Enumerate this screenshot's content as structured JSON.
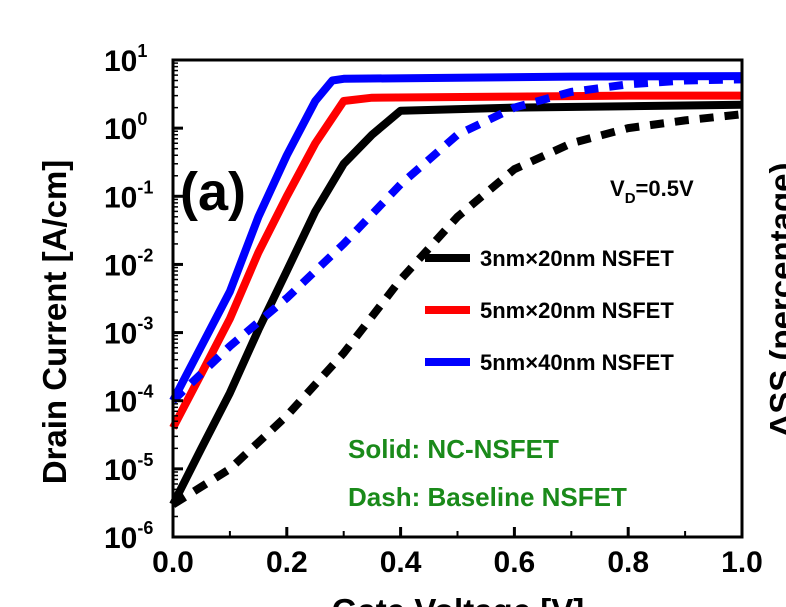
{
  "chart_data": {
    "type": "line",
    "panel_label": "(a)",
    "xlabel": "Gate Voltage [V]",
    "ylabel": "Drain Current [A/cm]",
    "right_axis_label_partial": "ΔSS (percentage)",
    "xlim": [
      0,
      1.0
    ],
    "ylim_log10": [
      -6,
      1
    ],
    "y_scale": "log",
    "x_ticks": [
      "0.0",
      "0.2",
      "0.4",
      "0.6",
      "0.8",
      "1.0"
    ],
    "y_ticks": [
      {
        "base": "10",
        "exp": "1"
      },
      {
        "base": "10",
        "exp": "0"
      },
      {
        "base": "10",
        "exp": "-1"
      },
      {
        "base": "10",
        "exp": "-2"
      },
      {
        "base": "10",
        "exp": "-3"
      },
      {
        "base": "10",
        "exp": "-4"
      },
      {
        "base": "10",
        "exp": "-5"
      },
      {
        "base": "10",
        "exp": "-6"
      }
    ],
    "annotation_vd": {
      "main": "V",
      "sub": "D",
      "rest": "=0.5V"
    },
    "legend": [
      {
        "label": "3nm×20nm NSFET",
        "color": "#000000"
      },
      {
        "label": "5nm×20nm NSFET",
        "color": "#ff0000"
      },
      {
        "label": "5nm×40nm NSFET",
        "color": "#0000ff"
      }
    ],
    "style_notes": {
      "solid": "Solid:  NC-NSFET",
      "dash": "Dash:  Baseline NSFET",
      "note_color": "#1a8a1a"
    },
    "series": [
      {
        "style": "solid",
        "color": "#0000ff",
        "x": [
          0,
          0.05,
          0.1,
          0.15,
          0.2,
          0.25,
          0.28,
          0.3,
          0.5,
          0.7,
          1.0
        ],
        "y": [
          0.0001,
          0.00063,
          0.004,
          0.05,
          0.4,
          2.5,
          5.0,
          5.3,
          5.5,
          5.7,
          5.8
        ]
      },
      {
        "style": "solid",
        "color": "#ff0000",
        "x": [
          0,
          0.05,
          0.1,
          0.15,
          0.2,
          0.25,
          0.3,
          0.35,
          0.6,
          0.8,
          1.0
        ],
        "y": [
          4e-05,
          0.00025,
          0.0016,
          0.015,
          0.1,
          0.6,
          2.5,
          2.8,
          2.9,
          3.0,
          3.0
        ]
      },
      {
        "style": "solid",
        "color": "#000000",
        "x": [
          0,
          0.05,
          0.1,
          0.15,
          0.2,
          0.25,
          0.3,
          0.35,
          0.4,
          0.6,
          0.8,
          1.0
        ],
        "y": [
          3e-06,
          2e-05,
          0.00013,
          0.0011,
          0.008,
          0.06,
          0.3,
          0.8,
          1.8,
          2.0,
          2.1,
          2.2
        ]
      },
      {
        "style": "dash",
        "color": "#0000ff",
        "x": [
          0,
          0.1,
          0.2,
          0.3,
          0.4,
          0.5,
          0.6,
          0.7,
          0.8,
          0.9,
          1.0
        ],
        "y": [
          0.0001,
          0.00063,
          0.0032,
          0.02,
          0.15,
          0.8,
          2.0,
          3.4,
          4.4,
          5.0,
          5.2
        ]
      },
      {
        "style": "dash",
        "color": "#000000",
        "x": [
          0,
          0.1,
          0.2,
          0.3,
          0.4,
          0.5,
          0.6,
          0.7,
          0.8,
          0.9,
          1.0
        ],
        "y": [
          3e-06,
          1e-05,
          6e-05,
          0.0005,
          0.006,
          0.05,
          0.25,
          0.6,
          1.0,
          1.3,
          1.6
        ]
      }
    ]
  }
}
